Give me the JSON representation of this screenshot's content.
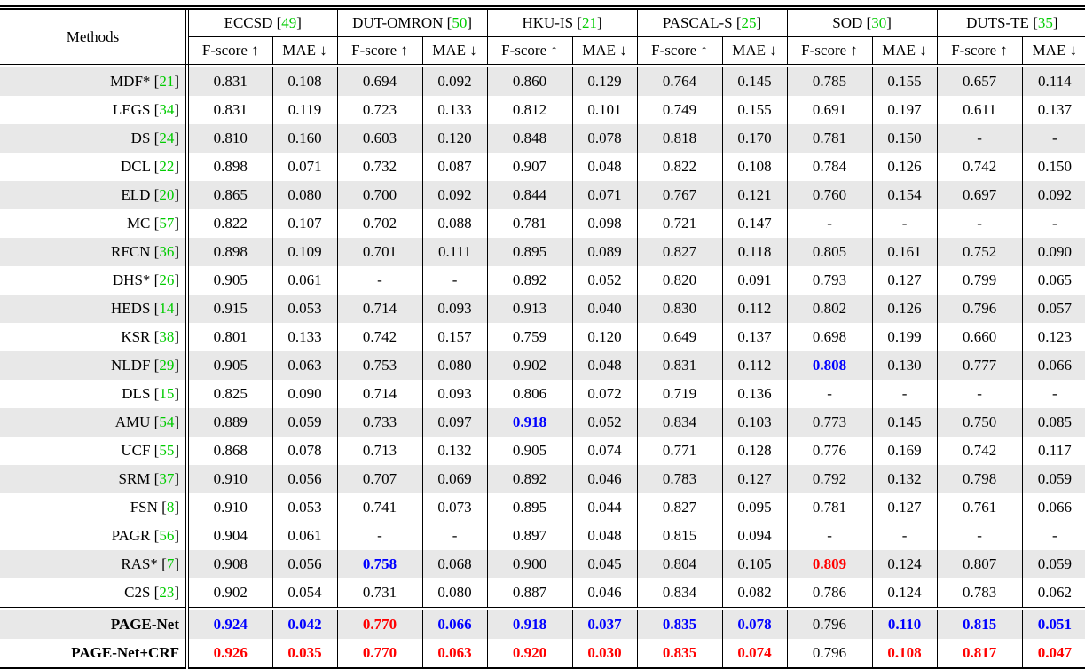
{
  "colors": {
    "citation_green": "#00cc00",
    "best_red": "#ff0000",
    "second_best_blue": "#0000ff",
    "row_shade_gray": "#e8e8e8",
    "border_black": "#000000"
  },
  "table": {
    "methods_header": "Methods",
    "fscore_label": "F-score ↑",
    "mae_label": "MAE ↓",
    "bracket_open": "[",
    "bracket_close": "]",
    "missing_value": "-",
    "datasets": [
      {
        "name": "ECCSD",
        "cite": "49"
      },
      {
        "name": "DUT-OMRON",
        "cite": "50"
      },
      {
        "name": "HKU-IS",
        "cite": "21"
      },
      {
        "name": "PASCAL-S",
        "cite": "25"
      },
      {
        "name": "SOD",
        "cite": "30"
      },
      {
        "name": "DUTS-TE",
        "cite": "35"
      }
    ],
    "rows": [
      {
        "method": "MDF*",
        "cite": "21",
        "shaded": true,
        "bold": false,
        "values": [
          "0.831",
          "0.108",
          "0.694",
          "0.092",
          "0.860",
          "0.129",
          "0.764",
          "0.145",
          "0.785",
          "0.155",
          "0.657",
          "0.114"
        ],
        "highlights": {}
      },
      {
        "method": "LEGS",
        "cite": "34",
        "shaded": false,
        "bold": false,
        "values": [
          "0.831",
          "0.119",
          "0.723",
          "0.133",
          "0.812",
          "0.101",
          "0.749",
          "0.155",
          "0.691",
          "0.197",
          "0.611",
          "0.137"
        ],
        "highlights": {}
      },
      {
        "method": "DS",
        "cite": "24",
        "shaded": true,
        "bold": false,
        "values": [
          "0.810",
          "0.160",
          "0.603",
          "0.120",
          "0.848",
          "0.078",
          "0.818",
          "0.170",
          "0.781",
          "0.150",
          "-",
          "-"
        ],
        "highlights": {}
      },
      {
        "method": "DCL",
        "cite": "22",
        "shaded": false,
        "bold": false,
        "values": [
          "0.898",
          "0.071",
          "0.732",
          "0.087",
          "0.907",
          "0.048",
          "0.822",
          "0.108",
          "0.784",
          "0.126",
          "0.742",
          "0.150"
        ],
        "highlights": {}
      },
      {
        "method": "ELD",
        "cite": "20",
        "shaded": true,
        "bold": false,
        "values": [
          "0.865",
          "0.080",
          "0.700",
          "0.092",
          "0.844",
          "0.071",
          "0.767",
          "0.121",
          "0.760",
          "0.154",
          "0.697",
          "0.092"
        ],
        "highlights": {}
      },
      {
        "method": "MC",
        "cite": "57",
        "shaded": false,
        "bold": false,
        "values": [
          "0.822",
          "0.107",
          "0.702",
          "0.088",
          "0.781",
          "0.098",
          "0.721",
          "0.147",
          "-",
          "-",
          "-",
          "-"
        ],
        "highlights": {}
      },
      {
        "method": "RFCN",
        "cite": "36",
        "shaded": true,
        "bold": false,
        "values": [
          "0.898",
          "0.109",
          "0.701",
          "0.111",
          "0.895",
          "0.089",
          "0.827",
          "0.118",
          "0.805",
          "0.161",
          "0.752",
          "0.090"
        ],
        "highlights": {}
      },
      {
        "method": "DHS*",
        "cite": "26",
        "shaded": false,
        "bold": false,
        "values": [
          "0.905",
          "0.061",
          "-",
          "-",
          "0.892",
          "0.052",
          "0.820",
          "0.091",
          "0.793",
          "0.127",
          "0.799",
          "0.065"
        ],
        "highlights": {}
      },
      {
        "method": "HEDS",
        "cite": "14",
        "shaded": true,
        "bold": false,
        "values": [
          "0.915",
          "0.053",
          "0.714",
          "0.093",
          "0.913",
          "0.040",
          "0.830",
          "0.112",
          "0.802",
          "0.126",
          "0.796",
          "0.057"
        ],
        "highlights": {}
      },
      {
        "method": "KSR",
        "cite": "38",
        "shaded": false,
        "bold": false,
        "values": [
          "0.801",
          "0.133",
          "0.742",
          "0.157",
          "0.759",
          "0.120",
          "0.649",
          "0.137",
          "0.698",
          "0.199",
          "0.660",
          "0.123"
        ],
        "highlights": {}
      },
      {
        "method": "NLDF",
        "cite": "29",
        "shaded": true,
        "bold": false,
        "values": [
          "0.905",
          "0.063",
          "0.753",
          "0.080",
          "0.902",
          "0.048",
          "0.831",
          "0.112",
          "0.808",
          "0.130",
          "0.777",
          "0.066"
        ],
        "highlights": {
          "8": "blue"
        }
      },
      {
        "method": "DLS",
        "cite": "15",
        "shaded": false,
        "bold": false,
        "values": [
          "0.825",
          "0.090",
          "0.714",
          "0.093",
          "0.806",
          "0.072",
          "0.719",
          "0.136",
          "-",
          "-",
          "-",
          "-"
        ],
        "highlights": {}
      },
      {
        "method": "AMU",
        "cite": "54",
        "shaded": true,
        "bold": false,
        "values": [
          "0.889",
          "0.059",
          "0.733",
          "0.097",
          "0.918",
          "0.052",
          "0.834",
          "0.103",
          "0.773",
          "0.145",
          "0.750",
          "0.085"
        ],
        "highlights": {
          "4": "blue"
        }
      },
      {
        "method": "UCF",
        "cite": "55",
        "shaded": false,
        "bold": false,
        "values": [
          "0.868",
          "0.078",
          "0.713",
          "0.132",
          "0.905",
          "0.074",
          "0.771",
          "0.128",
          "0.776",
          "0.169",
          "0.742",
          "0.117"
        ],
        "highlights": {}
      },
      {
        "method": "SRM",
        "cite": "37",
        "shaded": true,
        "bold": false,
        "values": [
          "0.910",
          "0.056",
          "0.707",
          "0.069",
          "0.892",
          "0.046",
          "0.783",
          "0.127",
          "0.792",
          "0.132",
          "0.798",
          "0.059"
        ],
        "highlights": {}
      },
      {
        "method": "FSN",
        "cite": "8",
        "shaded": false,
        "bold": false,
        "values": [
          "0.910",
          "0.053",
          "0.741",
          "0.073",
          "0.895",
          "0.044",
          "0.827",
          "0.095",
          "0.781",
          "0.127",
          "0.761",
          "0.066"
        ],
        "highlights": {}
      },
      {
        "method": "PAGR",
        "cite": "56",
        "shaded": false,
        "bold": false,
        "values": [
          "0.904",
          "0.061",
          "-",
          "-",
          "0.897",
          "0.048",
          "0.815",
          "0.094",
          "-",
          "-",
          "-",
          "-"
        ],
        "highlights": {}
      },
      {
        "method": "RAS*",
        "cite": "7",
        "shaded": true,
        "bold": false,
        "values": [
          "0.908",
          "0.056",
          "0.758",
          "0.068",
          "0.900",
          "0.045",
          "0.804",
          "0.105",
          "0.809",
          "0.124",
          "0.807",
          "0.059"
        ],
        "highlights": {
          "2": "blue",
          "8": "red"
        }
      },
      {
        "method": "C2S",
        "cite": "23",
        "shaded": false,
        "bold": false,
        "values": [
          "0.902",
          "0.054",
          "0.731",
          "0.080",
          "0.887",
          "0.046",
          "0.834",
          "0.082",
          "0.786",
          "0.124",
          "0.783",
          "0.062"
        ],
        "highlights": {}
      },
      {
        "method": "PAGE-Net",
        "cite": null,
        "shaded": true,
        "bold": true,
        "values": [
          "0.924",
          "0.042",
          "0.770",
          "0.066",
          "0.918",
          "0.037",
          "0.835",
          "0.078",
          "0.796",
          "0.110",
          "0.815",
          "0.051"
        ],
        "highlights": {
          "0": "blue",
          "1": "blue",
          "2": "red",
          "3": "blue",
          "4": "blue",
          "5": "blue",
          "6": "blue",
          "7": "blue",
          "9": "blue",
          "10": "blue",
          "11": "blue"
        }
      },
      {
        "method": "PAGE-Net+CRF",
        "cite": null,
        "shaded": false,
        "bold": true,
        "values": [
          "0.926",
          "0.035",
          "0.770",
          "0.063",
          "0.920",
          "0.030",
          "0.835",
          "0.074",
          "0.796",
          "0.108",
          "0.817",
          "0.047"
        ],
        "highlights": {
          "0": "red",
          "1": "red",
          "2": "red",
          "3": "red",
          "4": "red",
          "5": "red",
          "6": "red",
          "7": "red",
          "9": "red",
          "10": "red",
          "11": "red"
        }
      }
    ]
  }
}
